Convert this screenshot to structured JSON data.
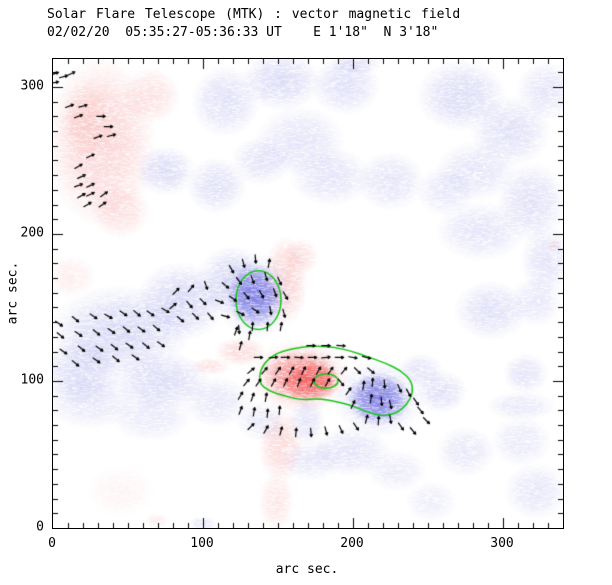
{
  "header": {
    "title": "Solar Flare Telescope (MTK) : vector magnetic field",
    "subtitle": "02/02/20  05:35:27-05:36:33 UT    E 1'18\"  N 3'18\""
  },
  "axes": {
    "xlabel": "arc sec.",
    "ylabel": "arc sec.",
    "xticks": [
      "0",
      "100",
      "200",
      "300"
    ],
    "xtick_values": [
      0,
      100,
      200,
      300
    ],
    "yticks": [
      "0",
      "100",
      "200",
      "300"
    ],
    "ytick_values": [
      0,
      100,
      200,
      300
    ],
    "xmax": 340,
    "ymax": 319,
    "minor_step": 10
  },
  "colors": {
    "positive_soft": "#f9aaaa",
    "positive_deep": "#f05555",
    "negative_soft": "#b2b2ef",
    "negative_deep": "#6666e0",
    "contour": "#17c517",
    "vector": "#000000",
    "frame": "#000000",
    "background": "#ffffff"
  },
  "chart_data": {
    "type": "heatmap",
    "title": "Solar Flare Telescope (MTK) : vector magnetic field",
    "observation_date": "02/02/20",
    "observation_time": "05:35:27-05:36:33 UT",
    "pointing": "E 1'18\"  N 3'18\"",
    "xlabel": "arc sec.",
    "ylabel": "arc sec.",
    "xlim": [
      0,
      340
    ],
    "ylim": [
      0,
      319
    ],
    "legend": "red = positive polarity, blue = negative polarity, green = field-strength contours, black bars = transverse field vectors",
    "positive_blobs": [
      [
        32,
        263,
        37,
        58,
        0.5,
        "s"
      ],
      [
        22,
        277,
        17,
        27,
        0.3,
        "s"
      ],
      [
        45,
        216,
        20,
        19,
        0.35,
        "s"
      ],
      [
        65,
        294,
        20,
        19,
        0.35,
        "s"
      ],
      [
        12,
        171,
        17,
        14,
        0.2,
        "s"
      ],
      [
        155,
        168,
        15,
        31,
        0.5,
        "s"
      ],
      [
        165,
        185,
        12,
        12,
        0.4,
        "s"
      ],
      [
        165,
        103,
        33,
        25,
        0.6,
        "s"
      ],
      [
        172,
        100,
        20,
        14,
        0.75,
        "d"
      ],
      [
        165,
        103,
        26,
        18,
        0.5,
        "d"
      ],
      [
        152,
        56,
        15,
        26,
        0.45,
        "s"
      ],
      [
        149,
        18,
        12,
        20,
        0.3,
        "s"
      ],
      [
        125,
        120,
        17,
        10,
        0.45,
        "s"
      ],
      [
        105,
        110,
        13,
        6,
        0.35,
        "s"
      ],
      [
        334,
        192,
        5,
        5,
        0.3,
        "s"
      ],
      [
        45,
        25,
        23,
        17,
        0.12,
        "s"
      ],
      [
        69,
        5,
        8,
        5,
        0.2,
        "s"
      ]
    ],
    "negative_blobs": [
      [
        115,
        290,
        23,
        24,
        0.4,
        "s"
      ],
      [
        152,
        304,
        27,
        20,
        0.45,
        "s"
      ],
      [
        195,
        301,
        23,
        20,
        0.4,
        "s"
      ],
      [
        165,
        263,
        30,
        24,
        0.35,
        "s"
      ],
      [
        202,
        316,
        17,
        8,
        0.35,
        "s"
      ],
      [
        272,
        294,
        30,
        24,
        0.45,
        "s"
      ],
      [
        305,
        270,
        27,
        24,
        0.4,
        "s"
      ],
      [
        329,
        297,
        20,
        20,
        0.35,
        "s"
      ],
      [
        282,
        243,
        27,
        20,
        0.35,
        "s"
      ],
      [
        319,
        222,
        23,
        27,
        0.4,
        "s"
      ],
      [
        285,
        202,
        30,
        20,
        0.35,
        "s"
      ],
      [
        329,
        182,
        17,
        24,
        0.35,
        "s"
      ],
      [
        75,
        243,
        20,
        17,
        0.45,
        "s"
      ],
      [
        109,
        233,
        20,
        19,
        0.4,
        "s"
      ],
      [
        139,
        250,
        20,
        17,
        0.35,
        "s"
      ],
      [
        185,
        239,
        27,
        20,
        0.35,
        "s"
      ],
      [
        225,
        236,
        23,
        20,
        0.35,
        "s"
      ],
      [
        262,
        229,
        20,
        17,
        0.3,
        "s"
      ],
      [
        45,
        134,
        47,
        31,
        0.5,
        "s"
      ],
      [
        19,
        107,
        27,
        24,
        0.45,
        "s"
      ],
      [
        85,
        154,
        30,
        27,
        0.5,
        "s"
      ],
      [
        119,
        168,
        23,
        24,
        0.5,
        "s"
      ],
      [
        72,
        100,
        33,
        20,
        0.45,
        "s"
      ],
      [
        135,
        158,
        26,
        30,
        0.4,
        "s"
      ],
      [
        135,
        158,
        19,
        22,
        0.8,
        "d"
      ],
      [
        25,
        86,
        30,
        19,
        0.3,
        "s"
      ],
      [
        65,
        76,
        27,
        17,
        0.28,
        "s"
      ],
      [
        109,
        86,
        23,
        17,
        0.3,
        "s"
      ],
      [
        139,
        73,
        17,
        14,
        0.28,
        "s"
      ],
      [
        292,
        148,
        25,
        20,
        0.4,
        "s"
      ],
      [
        322,
        154,
        17,
        17,
        0.3,
        "s"
      ],
      [
        315,
        105,
        15,
        14,
        0.35,
        "s"
      ],
      [
        259,
        93,
        17,
        15,
        0.4,
        "s"
      ],
      [
        312,
        83,
        23,
        10,
        0.3,
        "s"
      ],
      [
        217,
        88,
        30,
        26,
        0.45,
        "s"
      ],
      [
        217,
        88,
        21,
        18,
        0.8,
        "d"
      ],
      [
        245,
        107,
        15,
        12,
        0.35,
        "s"
      ],
      [
        199,
        52,
        27,
        17,
        0.35,
        "s"
      ],
      [
        172,
        46,
        20,
        14,
        0.3,
        "s"
      ],
      [
        229,
        39,
        20,
        14,
        0.25,
        "s"
      ],
      [
        275,
        52,
        20,
        17,
        0.3,
        "s"
      ],
      [
        312,
        59,
        20,
        17,
        0.28,
        "s"
      ],
      [
        322,
        25,
        21,
        19,
        0.32,
        "s"
      ],
      [
        252,
        18,
        17,
        14,
        0.22,
        "s"
      ],
      [
        169,
        73,
        12,
        17,
        0.35,
        "s"
      ],
      [
        100,
        3,
        10,
        5,
        0.3,
        "s"
      ]
    ],
    "contour_ellipses": [
      [
        137,
        155,
        15,
        20
      ],
      [
        182,
        100,
        8,
        5
      ]
    ],
    "contour_loop": [
      [
        137,
        99
      ],
      [
        139,
        110
      ],
      [
        147,
        118
      ],
      [
        159,
        122
      ],
      [
        173,
        124
      ],
      [
        188,
        123
      ],
      [
        200,
        120
      ],
      [
        211,
        116
      ],
      [
        222,
        112
      ],
      [
        232,
        107
      ],
      [
        239,
        100
      ],
      [
        240,
        92
      ],
      [
        236,
        84
      ],
      [
        229,
        78
      ],
      [
        219,
        76
      ],
      [
        209,
        79
      ],
      [
        200,
        83
      ],
      [
        189,
        86
      ],
      [
        177,
        88
      ],
      [
        165,
        87
      ],
      [
        154,
        90
      ],
      [
        144,
        93
      ]
    ],
    "vectors": [
      [
        1,
        309,
        20
      ],
      [
        7,
        307,
        15
      ],
      [
        12,
        309,
        25
      ],
      [
        1,
        303,
        10
      ],
      [
        11,
        287,
        20
      ],
      [
        20,
        287,
        15
      ],
      [
        17,
        280,
        20
      ],
      [
        32,
        280,
        0
      ],
      [
        37,
        273,
        0
      ],
      [
        39,
        267,
        15
      ],
      [
        30,
        266,
        20
      ],
      [
        25,
        253,
        25
      ],
      [
        17,
        246,
        30
      ],
      [
        19,
        239,
        25
      ],
      [
        17,
        233,
        20
      ],
      [
        25,
        233,
        25
      ],
      [
        19,
        226,
        30
      ],
      [
        25,
        227,
        25
      ],
      [
        34,
        227,
        35
      ],
      [
        23,
        220,
        30
      ],
      [
        33,
        220,
        35
      ],
      [
        119,
        176,
        -60
      ],
      [
        127,
        180,
        -75
      ],
      [
        135,
        183,
        -85
      ],
      [
        144,
        180,
        80
      ],
      [
        115,
        165,
        -40
      ],
      [
        124,
        168,
        -55
      ],
      [
        133,
        169,
        -70
      ],
      [
        142,
        171,
        -75
      ],
      [
        151,
        168,
        -65
      ],
      [
        111,
        154,
        -20
      ],
      [
        120,
        156,
        -35
      ],
      [
        129,
        158,
        -50
      ],
      [
        139,
        159,
        -60
      ],
      [
        148,
        160,
        -70
      ],
      [
        155,
        158,
        -60
      ],
      [
        115,
        144,
        -15
      ],
      [
        125,
        146,
        -25
      ],
      [
        135,
        148,
        -35
      ],
      [
        145,
        148,
        -80
      ],
      [
        154,
        146,
        -75
      ],
      [
        124,
        135,
        -85
      ],
      [
        133,
        137,
        85
      ],
      [
        143,
        137,
        85
      ],
      [
        152,
        137,
        80
      ],
      [
        4,
        139,
        -35
      ],
      [
        15,
        142,
        -40
      ],
      [
        27,
        144,
        -35
      ],
      [
        37,
        144,
        -30
      ],
      [
        47,
        146,
        -35
      ],
      [
        56,
        146,
        -40
      ],
      [
        65,
        146,
        -35
      ],
      [
        75,
        148,
        -30
      ],
      [
        5,
        131,
        -40
      ],
      [
        17,
        132,
        -35
      ],
      [
        29,
        133,
        -40
      ],
      [
        39,
        134,
        -35
      ],
      [
        49,
        135,
        -40
      ],
      [
        59,
        135,
        -35
      ],
      [
        69,
        136,
        -40
      ],
      [
        7,
        120,
        -35
      ],
      [
        19,
        122,
        -40
      ],
      [
        31,
        122,
        -35
      ],
      [
        41,
        123,
        -40
      ],
      [
        51,
        124,
        -35
      ],
      [
        62,
        124,
        -40
      ],
      [
        72,
        125,
        -35
      ],
      [
        15,
        112,
        -40
      ],
      [
        29,
        114,
        -35
      ],
      [
        42,
        115,
        -40
      ],
      [
        55,
        116,
        -35
      ],
      [
        82,
        161,
        45
      ],
      [
        92,
        163,
        50
      ],
      [
        102,
        165,
        -70
      ],
      [
        80,
        151,
        40
      ],
      [
        91,
        152,
        -50
      ],
      [
        100,
        154,
        -45
      ],
      [
        85,
        142,
        -40
      ],
      [
        95,
        144,
        -45
      ],
      [
        105,
        144,
        -50
      ],
      [
        122,
        134,
        70
      ],
      [
        131,
        131,
        80
      ],
      [
        125,
        124,
        75
      ],
      [
        137,
        116,
        0
      ],
      [
        147,
        116,
        5
      ],
      [
        155,
        116,
        0
      ],
      [
        164,
        116,
        -5
      ],
      [
        173,
        116,
        0
      ],
      [
        182,
        116,
        5
      ],
      [
        191,
        116,
        0
      ],
      [
        200,
        116,
        -10
      ],
      [
        209,
        116,
        -15
      ],
      [
        132,
        107,
        40
      ],
      [
        141,
        107,
        50
      ],
      [
        150,
        107,
        55
      ],
      [
        159,
        107,
        60
      ],
      [
        167,
        107,
        65
      ],
      [
        177,
        107,
        60
      ],
      [
        185,
        107,
        55
      ],
      [
        194,
        107,
        50
      ],
      [
        203,
        107,
        -45
      ],
      [
        212,
        107,
        -40
      ],
      [
        129,
        99,
        50
      ],
      [
        137,
        99,
        55
      ],
      [
        147,
        99,
        60
      ],
      [
        155,
        99,
        65
      ],
      [
        164,
        99,
        70
      ],
      [
        173,
        99,
        65
      ],
      [
        183,
        99,
        60
      ],
      [
        192,
        99,
        -50
      ],
      [
        125,
        90,
        60
      ],
      [
        133,
        89,
        70
      ],
      [
        142,
        89,
        80
      ],
      [
        125,
        80,
        70
      ],
      [
        134,
        79,
        80
      ],
      [
        143,
        78,
        85
      ],
      [
        151,
        80,
        85
      ],
      [
        132,
        69,
        45
      ],
      [
        142,
        67,
        60
      ],
      [
        152,
        66,
        75
      ],
      [
        162,
        65,
        85
      ],
      [
        172,
        65,
        -85
      ],
      [
        182,
        66,
        -75
      ],
      [
        192,
        67,
        -65
      ],
      [
        202,
        69,
        -55
      ],
      [
        172,
        124,
        0
      ],
      [
        182,
        124,
        0
      ],
      [
        192,
        124,
        -5
      ],
      [
        197,
        93,
        55
      ],
      [
        200,
        84,
        65
      ],
      [
        207,
        97,
        80
      ],
      [
        213,
        99,
        85
      ],
      [
        221,
        98,
        -85
      ],
      [
        231,
        95,
        -65
      ],
      [
        237,
        92,
        -60
      ],
      [
        242,
        86,
        -55
      ],
      [
        245,
        80,
        -50
      ],
      [
        209,
        74,
        75
      ],
      [
        217,
        73,
        85
      ],
      [
        225,
        74,
        -80
      ],
      [
        212,
        88,
        80
      ],
      [
        219,
        86,
        -85
      ],
      [
        225,
        84,
        -75
      ],
      [
        232,
        69,
        -55
      ],
      [
        240,
        66,
        -50
      ],
      [
        249,
        73,
        -45
      ]
    ]
  }
}
